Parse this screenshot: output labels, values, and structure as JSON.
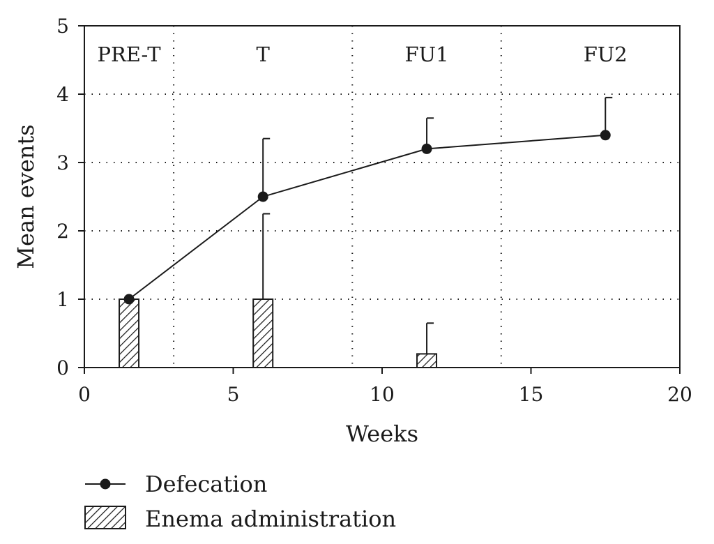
{
  "chart_data": {
    "type": "line+bar",
    "xlabel": "Weeks",
    "ylabel": "Mean events",
    "xlim": [
      0,
      20
    ],
    "ylim": [
      0,
      5
    ],
    "xticks": [
      0,
      5,
      10,
      15,
      20
    ],
    "yticks": [
      0,
      1,
      2,
      3,
      4,
      5
    ],
    "grid": "dotted",
    "period_boundaries": [
      3,
      9,
      14
    ],
    "periods": [
      {
        "label": "PRE-T",
        "x": 1.5
      },
      {
        "label": "T",
        "x": 6
      },
      {
        "label": "FU1",
        "x": 11.5
      },
      {
        "label": "FU2",
        "x": 17.5
      }
    ],
    "series": [
      {
        "name": "Defecation",
        "kind": "line",
        "x": [
          1.5,
          6,
          11.5,
          17.5
        ],
        "values": [
          1.0,
          2.5,
          3.2,
          3.4
        ],
        "error_upper": [
          null,
          3.35,
          3.65,
          3.95
        ],
        "color": "#1a1a1a"
      },
      {
        "name": "Enema administration",
        "kind": "bar",
        "pattern": "hatched",
        "x": [
          1.5,
          6,
          11.5
        ],
        "values": [
          1.0,
          1.0,
          0.2
        ],
        "error_upper": [
          null,
          2.25,
          0.65
        ],
        "color": "#1a1a1a"
      }
    ],
    "legend": {
      "position": "bottom-left",
      "entries": [
        "Defecation",
        "Enema administration"
      ]
    }
  }
}
